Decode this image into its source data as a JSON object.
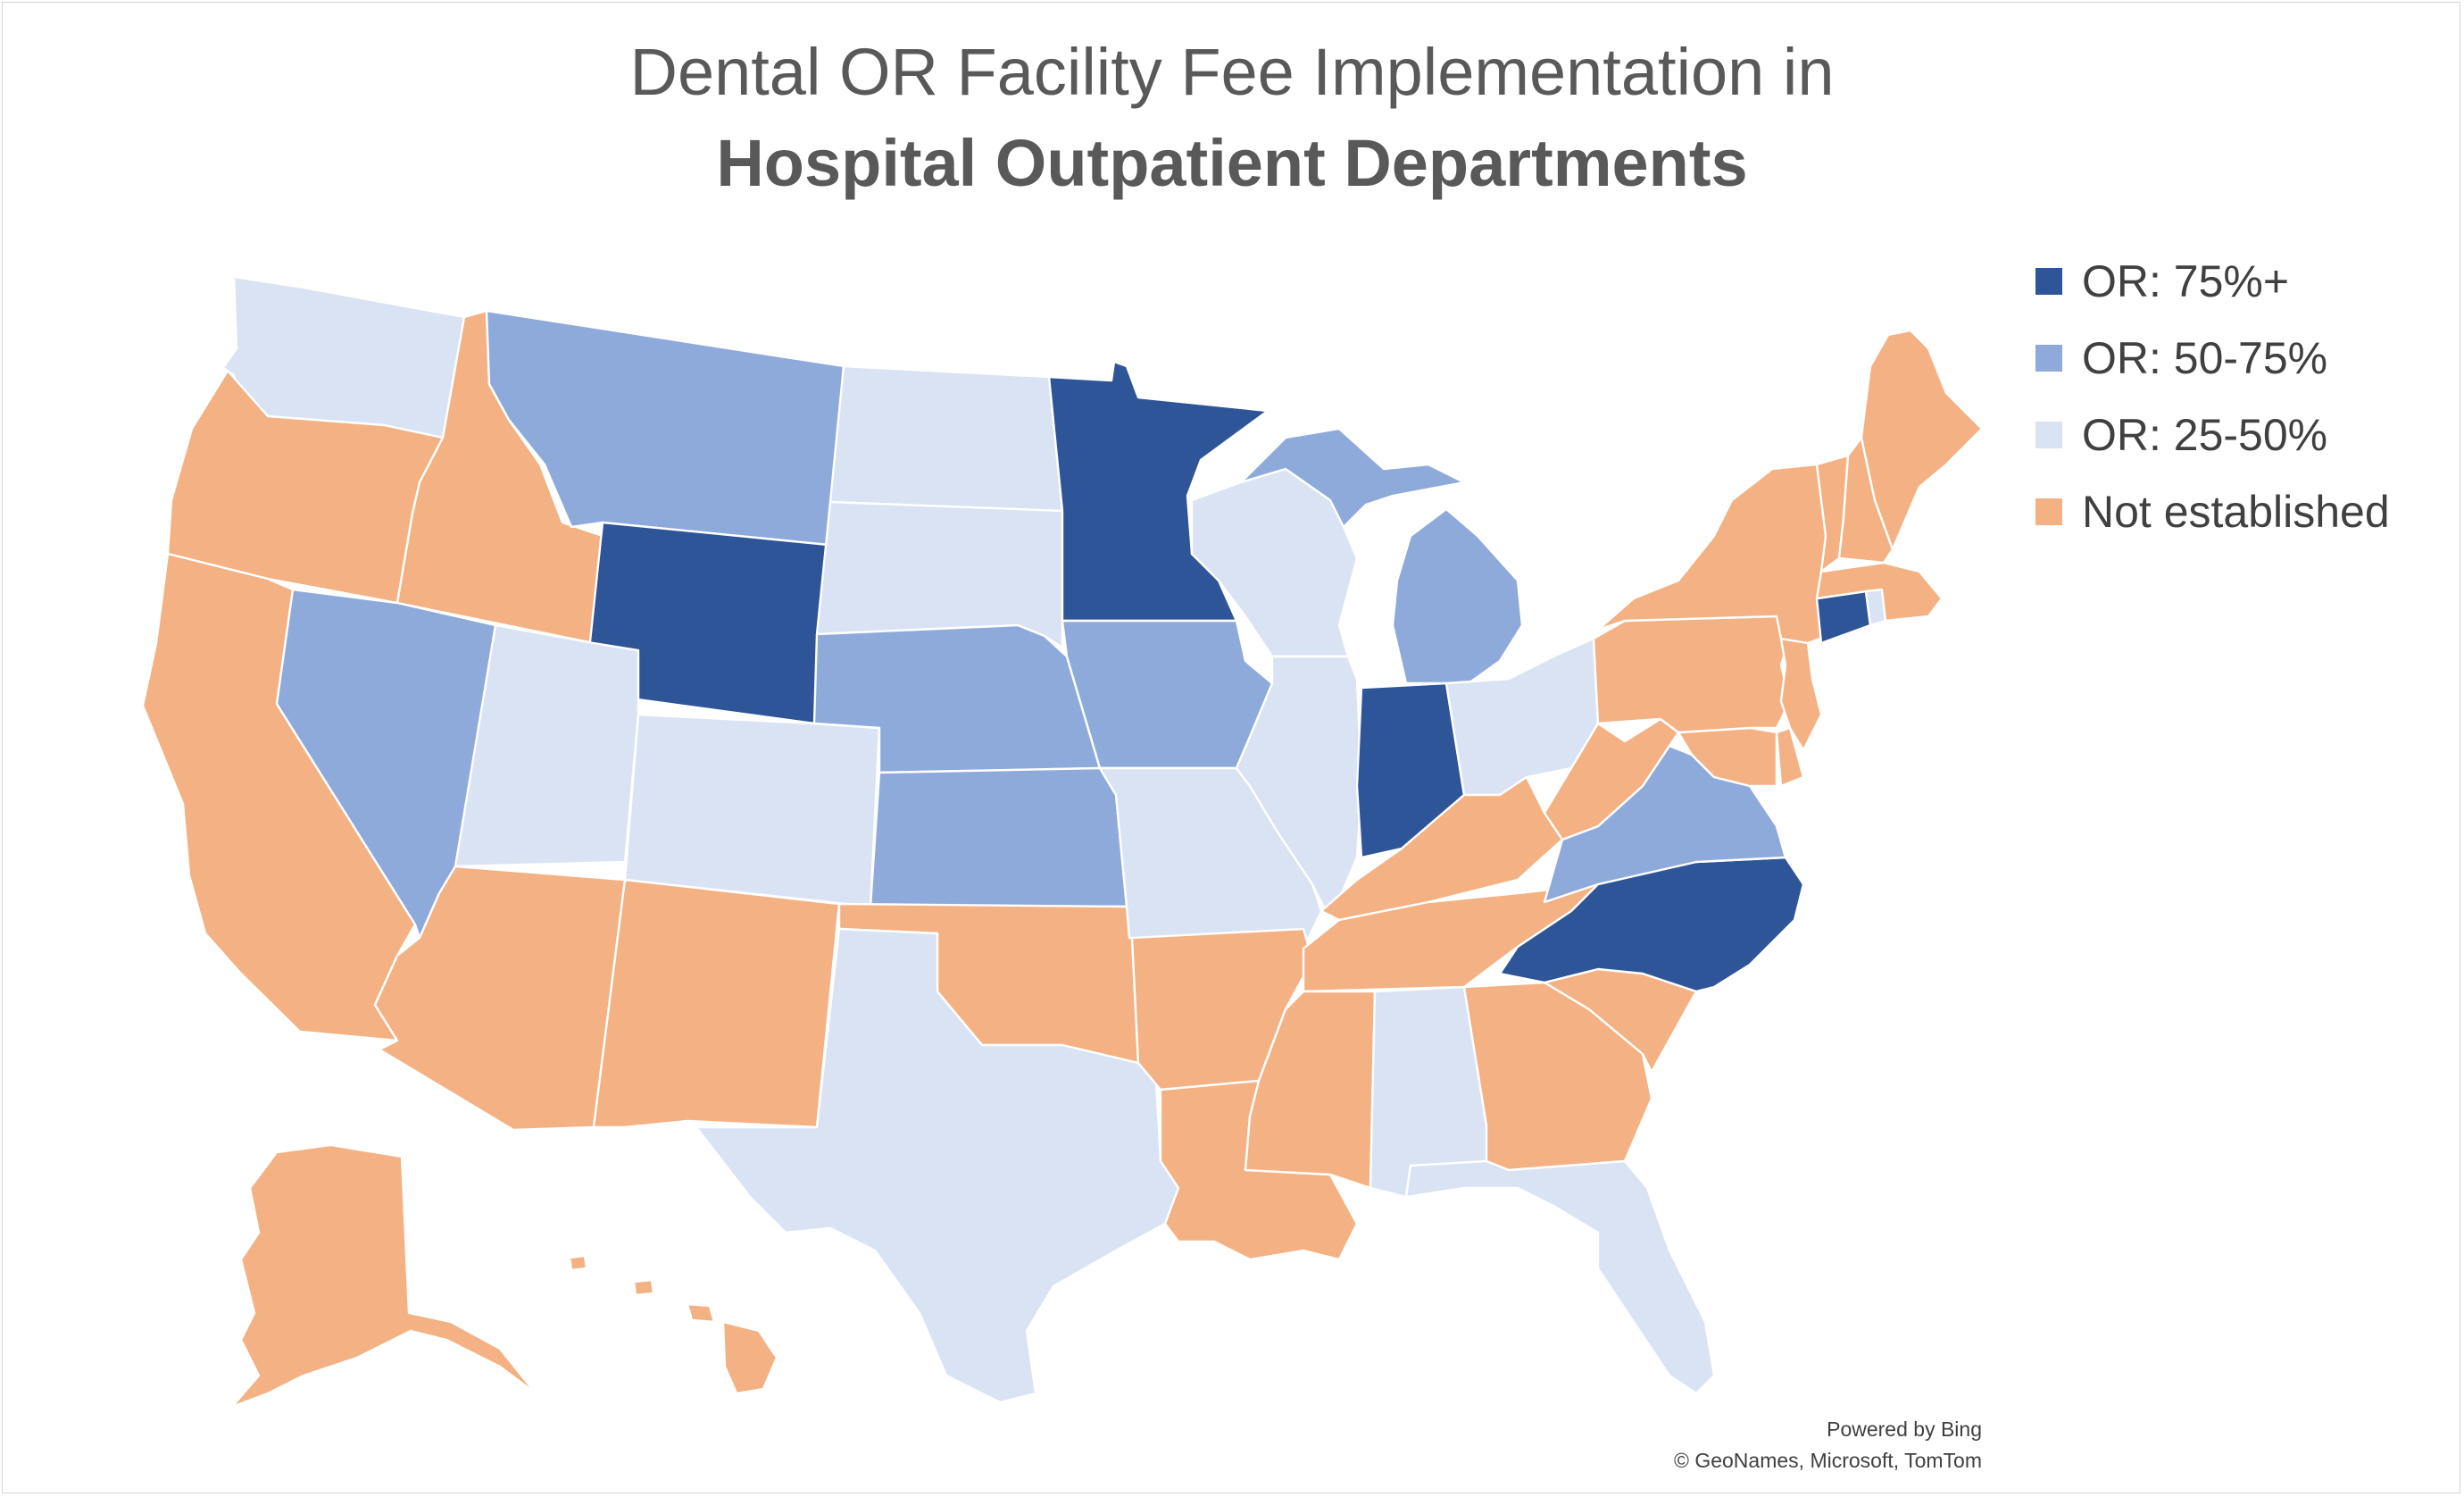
{
  "title": {
    "line1": "Dental OR Facility Fee Implementation in",
    "line2": "Hospital Outpatient Departments"
  },
  "legend": [
    {
      "key": "or75",
      "label": "OR: 75%+",
      "color": "#2e5597"
    },
    {
      "key": "or50",
      "label": "OR: 50-75%",
      "color": "#8eaadb"
    },
    {
      "key": "or25",
      "label": "OR: 25-50%",
      "color": "#dae3f3"
    },
    {
      "key": "none",
      "label": "Not established",
      "color": "#f4b183"
    }
  ],
  "states": [
    {
      "abbr": "WA",
      "category": "or25"
    },
    {
      "abbr": "OR",
      "category": "none"
    },
    {
      "abbr": "CA",
      "category": "none"
    },
    {
      "abbr": "ID",
      "category": "none"
    },
    {
      "abbr": "NV",
      "category": "or50"
    },
    {
      "abbr": "MT",
      "category": "or50"
    },
    {
      "abbr": "WY",
      "category": "or75"
    },
    {
      "abbr": "UT",
      "category": "or25"
    },
    {
      "abbr": "AZ",
      "category": "none"
    },
    {
      "abbr": "CO",
      "category": "or25"
    },
    {
      "abbr": "NM",
      "category": "none"
    },
    {
      "abbr": "ND",
      "category": "or25"
    },
    {
      "abbr": "SD",
      "category": "or25"
    },
    {
      "abbr": "NE",
      "category": "or50"
    },
    {
      "abbr": "KS",
      "category": "or50"
    },
    {
      "abbr": "OK",
      "category": "none"
    },
    {
      "abbr": "TX",
      "category": "or25"
    },
    {
      "abbr": "MN",
      "category": "or75"
    },
    {
      "abbr": "IA",
      "category": "or50"
    },
    {
      "abbr": "MO",
      "category": "or25"
    },
    {
      "abbr": "AR",
      "category": "none"
    },
    {
      "abbr": "LA",
      "category": "none"
    },
    {
      "abbr": "WI",
      "category": "or25"
    },
    {
      "abbr": "IL",
      "category": "or25"
    },
    {
      "abbr": "MI",
      "category": "or50"
    },
    {
      "abbr": "IN",
      "category": "or75"
    },
    {
      "abbr": "OH",
      "category": "or25"
    },
    {
      "abbr": "KY",
      "category": "none"
    },
    {
      "abbr": "TN",
      "category": "none"
    },
    {
      "abbr": "MS",
      "category": "none"
    },
    {
      "abbr": "AL",
      "category": "or25"
    },
    {
      "abbr": "GA",
      "category": "none"
    },
    {
      "abbr": "FL",
      "category": "or25"
    },
    {
      "abbr": "SC",
      "category": "none"
    },
    {
      "abbr": "NC",
      "category": "or75"
    },
    {
      "abbr": "VA",
      "category": "or50"
    },
    {
      "abbr": "WV",
      "category": "none"
    },
    {
      "abbr": "MD",
      "category": "none"
    },
    {
      "abbr": "DE",
      "category": "none"
    },
    {
      "abbr": "PA",
      "category": "none"
    },
    {
      "abbr": "NJ",
      "category": "none"
    },
    {
      "abbr": "NY",
      "category": "none"
    },
    {
      "abbr": "CT",
      "category": "or75"
    },
    {
      "abbr": "RI",
      "category": "or25"
    },
    {
      "abbr": "MA",
      "category": "none"
    },
    {
      "abbr": "VT",
      "category": "none"
    },
    {
      "abbr": "NH",
      "category": "none"
    },
    {
      "abbr": "ME",
      "category": "none"
    },
    {
      "abbr": "AK",
      "category": "none"
    },
    {
      "abbr": "HI",
      "category": "none"
    }
  ],
  "credits": {
    "line1": "Powered by Bing",
    "line2": "© GeoNames, Microsoft, TomTom"
  }
}
